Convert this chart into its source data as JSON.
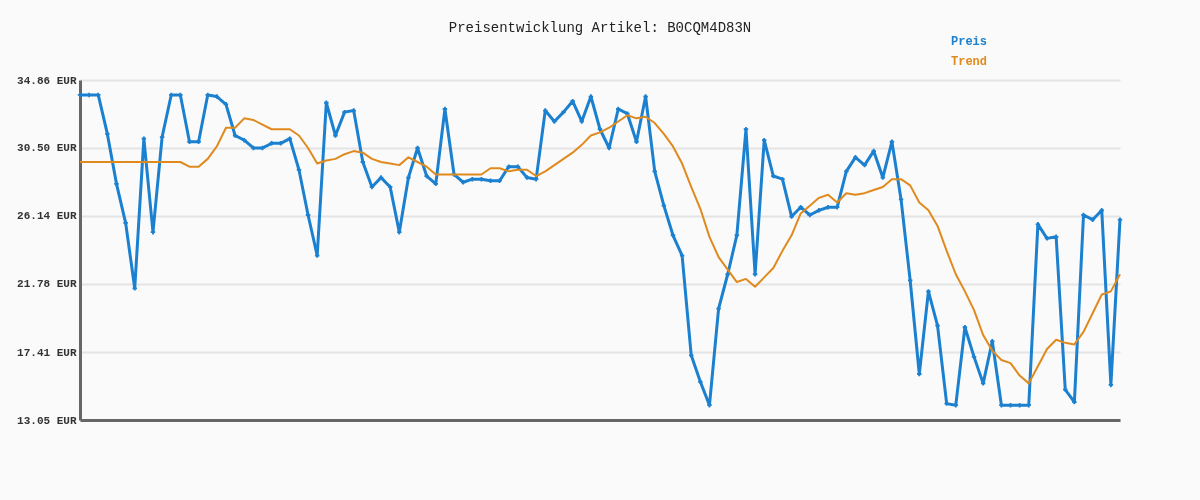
{
  "chart_data": {
    "type": "line",
    "title": "Preisentwicklung Artikel: B0CQM4D83N",
    "categories": [
      null,
      null,
      null,
      null,
      null,
      null,
      null,
      null,
      null,
      null,
      null,
      null,
      null,
      null,
      null,
      null,
      null,
      null,
      null,
      null,
      null,
      null,
      null,
      null,
      null,
      null,
      null,
      null,
      null,
      null,
      null,
      null,
      null,
      null,
      null,
      null,
      null,
      null,
      null,
      null,
      null,
      null,
      null,
      null,
      null,
      null,
      null,
      null,
      null,
      null,
      null,
      null,
      null,
      null,
      null,
      null,
      null,
      null,
      null,
      null,
      null,
      null,
      null,
      null,
      null,
      null,
      null,
      null,
      null,
      null,
      null,
      null,
      null,
      null,
      null,
      null,
      null,
      null,
      null,
      null,
      null,
      null,
      null,
      null,
      null,
      null,
      null,
      null,
      null,
      null,
      null,
      null,
      null,
      null,
      null,
      null,
      null,
      null,
      null,
      null,
      null,
      null,
      null,
      null,
      null,
      null,
      null,
      null,
      null,
      null,
      null,
      null,
      null,
      null,
      null
    ],
    "series": [
      {
        "name": "Preis",
        "color": "#1b80cf",
        "marker": "cross",
        "values": [
          33.9,
          33.9,
          33.9,
          31.4,
          28.2,
          25.7,
          21.5,
          31.1,
          25.1,
          31.2,
          33.9,
          33.9,
          30.9,
          30.9,
          33.9,
          33.8,
          33.3,
          31.3,
          31.0,
          30.5,
          30.5,
          30.8,
          30.8,
          31.1,
          29.1,
          26.2,
          23.6,
          33.4,
          31.3,
          32.8,
          32.9,
          29.6,
          28.0,
          28.6,
          28.0,
          25.1,
          28.6,
          30.5,
          28.7,
          28.2,
          33.0,
          28.8,
          28.3,
          28.5,
          28.5,
          28.4,
          28.4,
          29.3,
          29.3,
          28.6,
          28.5,
          32.9,
          32.2,
          32.8,
          33.5,
          32.2,
          33.8,
          31.7,
          30.5,
          33.0,
          32.7,
          30.9,
          33.8,
          29.0,
          26.8,
          24.9,
          23.6,
          17.2,
          15.5,
          14.0,
          20.2,
          22.4,
          24.9,
          31.7,
          22.4,
          31.0,
          28.7,
          28.5,
          26.1,
          26.7,
          26.2,
          26.5,
          26.7,
          26.7,
          29.0,
          29.9,
          29.4,
          30.3,
          28.6,
          30.9,
          27.2,
          22.0,
          16.0,
          21.3,
          19.1,
          14.1,
          14.0,
          19.0,
          17.1,
          15.4,
          18.1,
          14.0,
          14.0,
          14.0,
          14.0,
          25.6,
          24.7,
          24.8,
          15.0,
          14.2,
          26.2,
          25.9,
          26.5,
          15.3,
          25.9
        ]
      },
      {
        "name": "Trend",
        "color": "#e08a1e",
        "values": [
          29.6,
          29.6,
          29.6,
          29.6,
          29.6,
          29.6,
          29.6,
          29.6,
          29.6,
          29.6,
          29.6,
          29.6,
          29.3,
          29.3,
          29.8,
          30.6,
          31.8,
          31.8,
          32.4,
          32.3,
          32.0,
          31.7,
          31.7,
          31.7,
          31.3,
          30.5,
          29.5,
          29.7,
          29.8,
          30.1,
          30.3,
          30.2,
          29.8,
          29.6,
          29.5,
          29.4,
          29.9,
          29.6,
          29.3,
          28.8,
          28.8,
          28.8,
          28.8,
          28.8,
          28.8,
          29.2,
          29.2,
          29.0,
          29.1,
          29.1,
          28.7,
          29.0,
          29.4,
          29.8,
          30.2,
          30.7,
          31.3,
          31.5,
          31.8,
          32.2,
          32.6,
          32.4,
          32.5,
          32.1,
          31.4,
          30.6,
          29.5,
          28.0,
          26.6,
          24.8,
          23.5,
          22.7,
          21.9,
          22.1,
          21.6,
          22.2,
          22.8,
          23.9,
          24.9,
          26.3,
          26.8,
          27.3,
          27.5,
          27.0,
          27.6,
          27.5,
          27.6,
          27.8,
          28.0,
          28.5,
          28.5,
          28.1,
          27.0,
          26.5,
          25.5,
          23.9,
          22.4,
          21.3,
          20.1,
          18.5,
          17.5,
          16.9,
          16.7,
          15.9,
          15.4,
          16.5,
          17.6,
          18.2,
          18.0,
          17.9,
          18.7,
          19.9,
          21.1,
          21.3,
          22.4
        ]
      }
    ],
    "ylim": [
      13.05,
      34.86
    ],
    "yticks": [
      {
        "value": 13.05,
        "label": "13.05 EUR"
      },
      {
        "value": 17.41,
        "label": "17.41 EUR"
      },
      {
        "value": 21.78,
        "label": "21.78 EUR"
      },
      {
        "value": 26.14,
        "label": "26.14 EUR"
      },
      {
        "value": 30.5,
        "label": "30.50 EUR"
      },
      {
        "value": 34.86,
        "label": "34.86 EUR"
      }
    ],
    "grid": "y",
    "legend": "top right",
    "line_style": "solid"
  }
}
